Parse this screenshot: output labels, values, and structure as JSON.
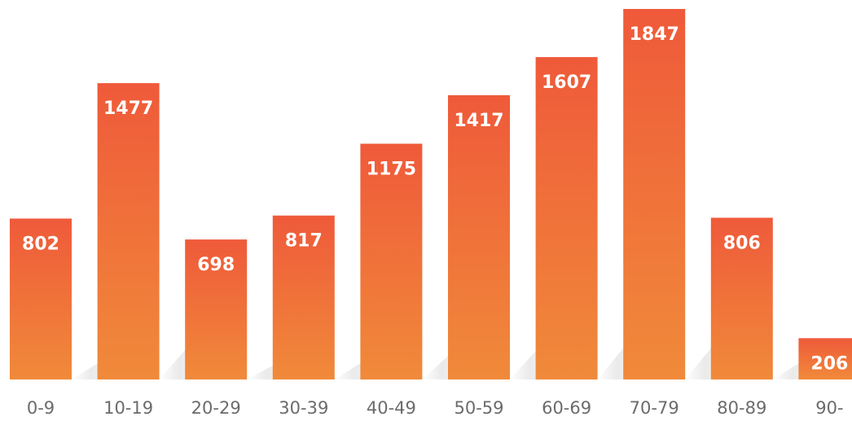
{
  "chart_data": {
    "type": "bar",
    "title": "",
    "xlabel": "",
    "ylabel": "",
    "categories": [
      "0-9",
      "10-19",
      "20-29",
      "30-39",
      "40-49",
      "50-59",
      "60-69",
      "70-79",
      "80-89",
      "90-"
    ],
    "values": [
      802,
      1477,
      698,
      817,
      1175,
      1417,
      1607,
      1847,
      806,
      206
    ],
    "ylim": [
      0,
      1847
    ],
    "grid": false,
    "legend": "none",
    "colors": {
      "bar_top": "#ef5a3a",
      "bar_bottom": "#f08a3a",
      "label": "#ffffff",
      "tick": "#6b6b6b"
    }
  }
}
